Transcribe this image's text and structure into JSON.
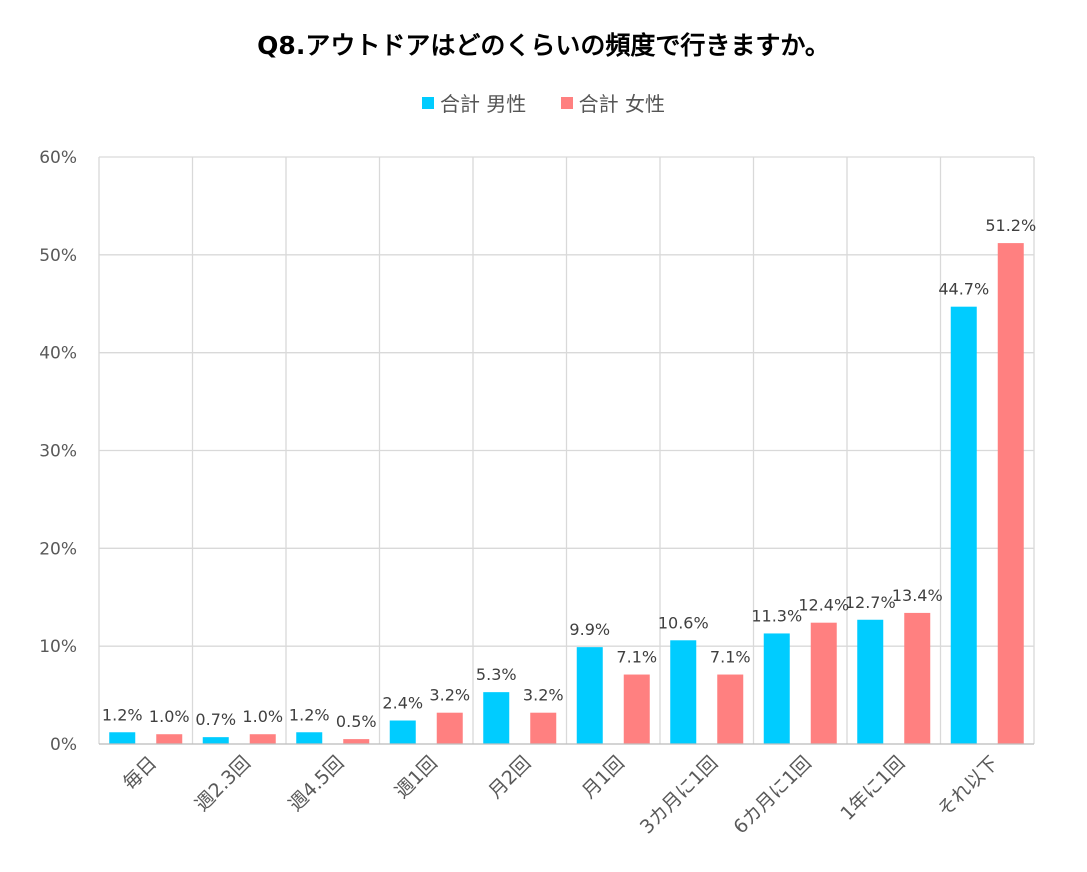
{
  "chart_data": {
    "type": "bar",
    "title": "Q8.アウトドアはどのくらいの頻度で行きますか。",
    "categories": [
      "毎日",
      "週2.3回",
      "週4.5回",
      "週1回",
      "月2回",
      "月1回",
      "3カ月に1回",
      "6カ月に1回",
      "1年に1回",
      "それ以下"
    ],
    "series": [
      {
        "name": "合計 男性",
        "color": "#00CCFF",
        "values": [
          1.2,
          0.7,
          1.2,
          2.4,
          5.3,
          9.9,
          10.6,
          11.3,
          12.7,
          44.7
        ],
        "labels": [
          "1.2%",
          "0.7%",
          "1.2%",
          "2.4%",
          "5.3%",
          "9.9%",
          "10.6%",
          "11.3%",
          "12.7%",
          "44.7%"
        ]
      },
      {
        "name": "合計 女性",
        "color": "#FF8080",
        "values": [
          1.0,
          1.0,
          0.5,
          3.2,
          3.2,
          7.1,
          7.1,
          12.4,
          13.4,
          51.2
        ],
        "labels": [
          "1.0%",
          "1.0%",
          "0.5%",
          "3.2%",
          "3.2%",
          "7.1%",
          "7.1%",
          "12.4%",
          "13.4%",
          "51.2%"
        ]
      }
    ],
    "ylim": [
      0,
      60
    ],
    "yticks": [
      0,
      10,
      20,
      30,
      40,
      50,
      60
    ],
    "ytick_labels": [
      "0%",
      "10%",
      "20%",
      "30%",
      "40%",
      "50%",
      "60%"
    ],
    "legend_position": "top",
    "grid": true
  }
}
